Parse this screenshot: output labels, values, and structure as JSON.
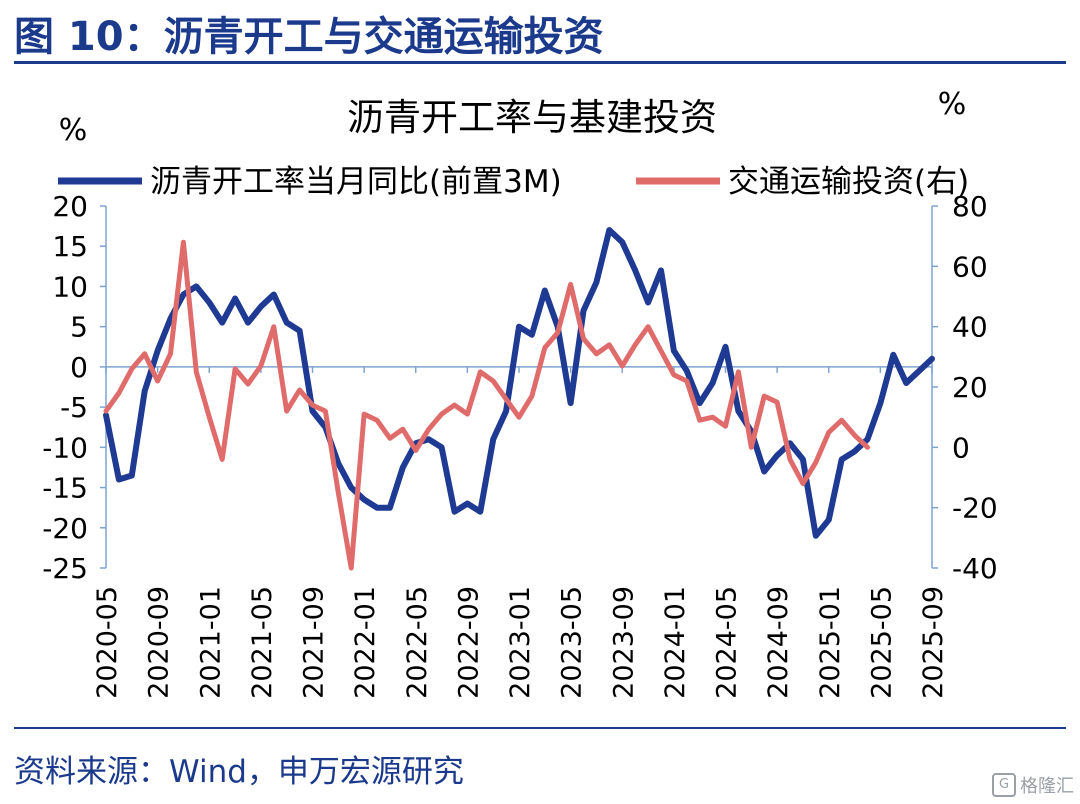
{
  "figure": {
    "title": "图 10：沥青开工与交通运输投资",
    "source": "资料来源：Wind，申万宏源研究",
    "watermark": "格隆汇"
  },
  "chart_data": {
    "type": "line",
    "title": "沥青开工率与基建投资",
    "y_left_unit": "%",
    "y_right_unit": "%",
    "ylim_left": [
      -25,
      20
    ],
    "ylim_right": [
      -40,
      80
    ],
    "y_left_ticks": [
      20,
      15,
      10,
      5,
      0,
      -5,
      -10,
      -15,
      -20,
      -25
    ],
    "y_right_ticks": [
      80,
      60,
      40,
      20,
      0,
      -20,
      -40
    ],
    "x_tick_labels": [
      "2020-05",
      "2020-09",
      "2021-01",
      "2021-05",
      "2021-09",
      "2022-01",
      "2022-05",
      "2022-09",
      "2023-01",
      "2023-05",
      "2023-09",
      "2024-01",
      "2024-05",
      "2024-09",
      "2025-01",
      "2025-05",
      "2025-09"
    ],
    "x_start": "2020-05",
    "legend_position": "top",
    "grid": false,
    "series": [
      {
        "name": "沥青开工率当月同比(前置3M)",
        "axis": "left",
        "color": "#1f3a93",
        "values": [
          -6,
          -14,
          -13.5,
          -3,
          2,
          6,
          9,
          10,
          8,
          5.5,
          8.5,
          5.5,
          7.5,
          9,
          5.5,
          4.5,
          -5.5,
          -7.5,
          -12,
          -15,
          -16.5,
          -17.5,
          -17.5,
          -12.5,
          -9.5,
          -9,
          -10,
          -18,
          -17,
          -18,
          -9,
          -5.5,
          5,
          4,
          9.5,
          5,
          -4.5,
          7,
          10.5,
          17,
          15.5,
          12,
          8,
          12,
          2,
          -0.5,
          -4.5,
          -2,
          2.5,
          -5.5,
          -8,
          -13,
          -11,
          -9.5,
          -11.5,
          -21,
          -19,
          -11.5,
          -10.5,
          -9,
          -4.5,
          1.5,
          -2,
          -0.5,
          1
        ]
      },
      {
        "name": "交通运输投资(右)",
        "axis": "right",
        "color": "#e06b6b",
        "values": [
          12,
          18,
          26,
          31,
          22,
          31,
          68,
          25,
          10,
          -4,
          26,
          21,
          27,
          40,
          12,
          19,
          14,
          12,
          -15,
          -40,
          11,
          9,
          3,
          6,
          -1,
          6,
          11,
          14,
          11,
          25,
          22,
          16,
          10,
          17,
          33,
          38,
          54,
          36,
          31,
          34,
          27,
          34,
          40,
          32,
          24,
          22,
          9,
          10,
          7,
          25,
          0,
          17,
          15,
          -4,
          -12,
          -5,
          5,
          9,
          4,
          0
        ]
      }
    ]
  }
}
